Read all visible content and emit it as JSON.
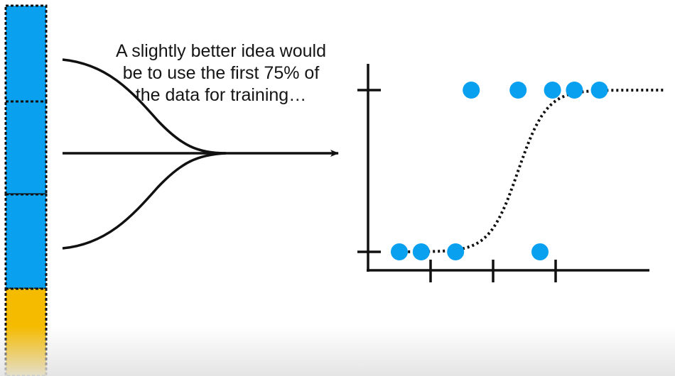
{
  "caption": {
    "lines": [
      "A slightly better idea would",
      "be to use the first 75% of",
      "the data for training…"
    ]
  },
  "data_bar": {
    "blocks": [
      {
        "role": "training",
        "color": "#0aa0f0"
      },
      {
        "role": "training",
        "color": "#0aa0f0"
      },
      {
        "role": "training",
        "color": "#0aa0f0"
      },
      {
        "role": "testing",
        "color": "#f5bb00"
      }
    ]
  },
  "chart_data": {
    "type": "scatter",
    "x_range": [
      0,
      9.5
    ],
    "y_range": [
      -0.2,
      1.2
    ],
    "y_ticks": [
      0,
      1
    ],
    "x_ticks": [
      2,
      4,
      6
    ],
    "points": [
      {
        "x": 1.0,
        "y": 0
      },
      {
        "x": 1.7,
        "y": 0
      },
      {
        "x": 2.8,
        "y": 0
      },
      {
        "x": 5.5,
        "y": 0
      },
      {
        "x": 3.3,
        "y": 1
      },
      {
        "x": 4.8,
        "y": 1
      },
      {
        "x": 5.9,
        "y": 1
      },
      {
        "x": 6.6,
        "y": 1
      },
      {
        "x": 7.4,
        "y": 1
      }
    ],
    "point_color": "#0aa0f0",
    "curve": {
      "type": "logistic",
      "midpoint": 4.8,
      "steepness": 2.2,
      "x_from": 0.8,
      "x_to": 9.45,
      "style": "dotted"
    }
  }
}
